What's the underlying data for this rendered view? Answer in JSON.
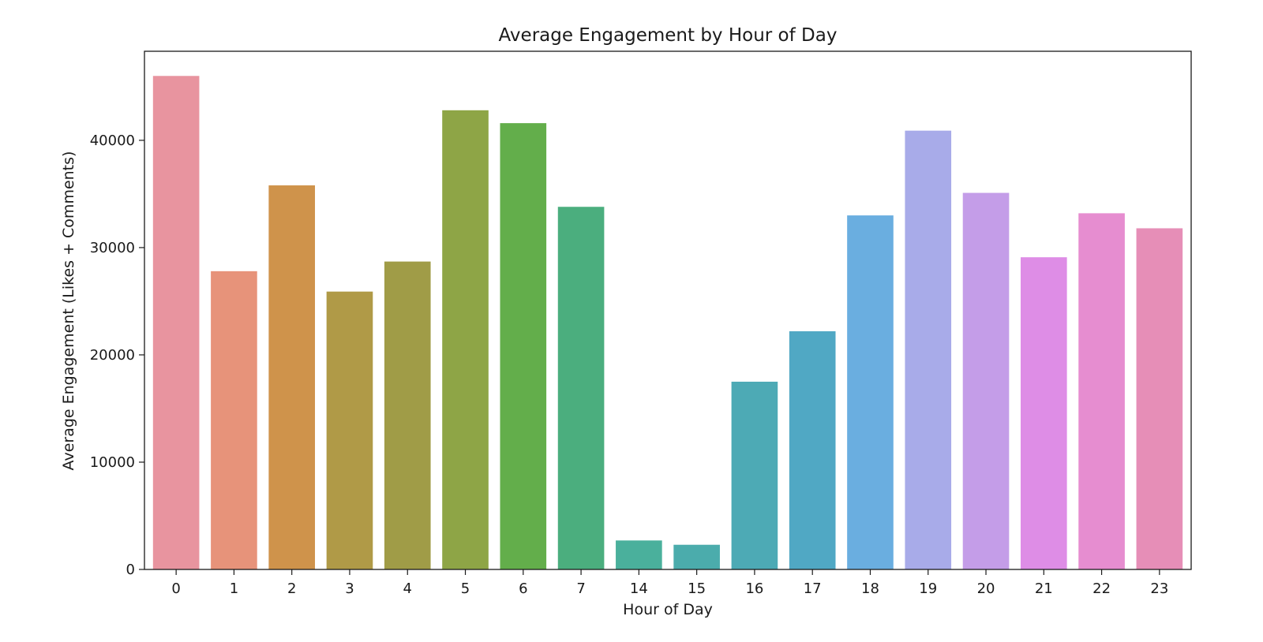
{
  "chart_data": {
    "type": "bar",
    "title": "Average Engagement by Hour of Day",
    "xlabel": "Hour of Day",
    "ylabel": "Average Engagement (Likes + Comments)",
    "categories": [
      "0",
      "1",
      "2",
      "3",
      "4",
      "5",
      "6",
      "7",
      "14",
      "15",
      "16",
      "17",
      "18",
      "19",
      "20",
      "21",
      "22",
      "23"
    ],
    "values": [
      46000,
      27800,
      35800,
      25900,
      28700,
      42800,
      41600,
      33800,
      2700,
      2300,
      17500,
      22200,
      33000,
      40900,
      35100,
      29100,
      33200,
      31800
    ],
    "colors": [
      "#e8949f",
      "#e7937a",
      "#cf934b",
      "#b09a47",
      "#a09c47",
      "#8ea546",
      "#63ae4b",
      "#4bae7e",
      "#4ab09c",
      "#4bacac",
      "#4daab5",
      "#50a8c4",
      "#6aaee0",
      "#a8abe9",
      "#c49de8",
      "#de8de6",
      "#e68dd0",
      "#e68eb7"
    ],
    "yticks": [
      0,
      10000,
      20000,
      30000,
      40000
    ],
    "ylim": [
      0,
      48300
    ],
    "grid": false,
    "legend": "none"
  }
}
